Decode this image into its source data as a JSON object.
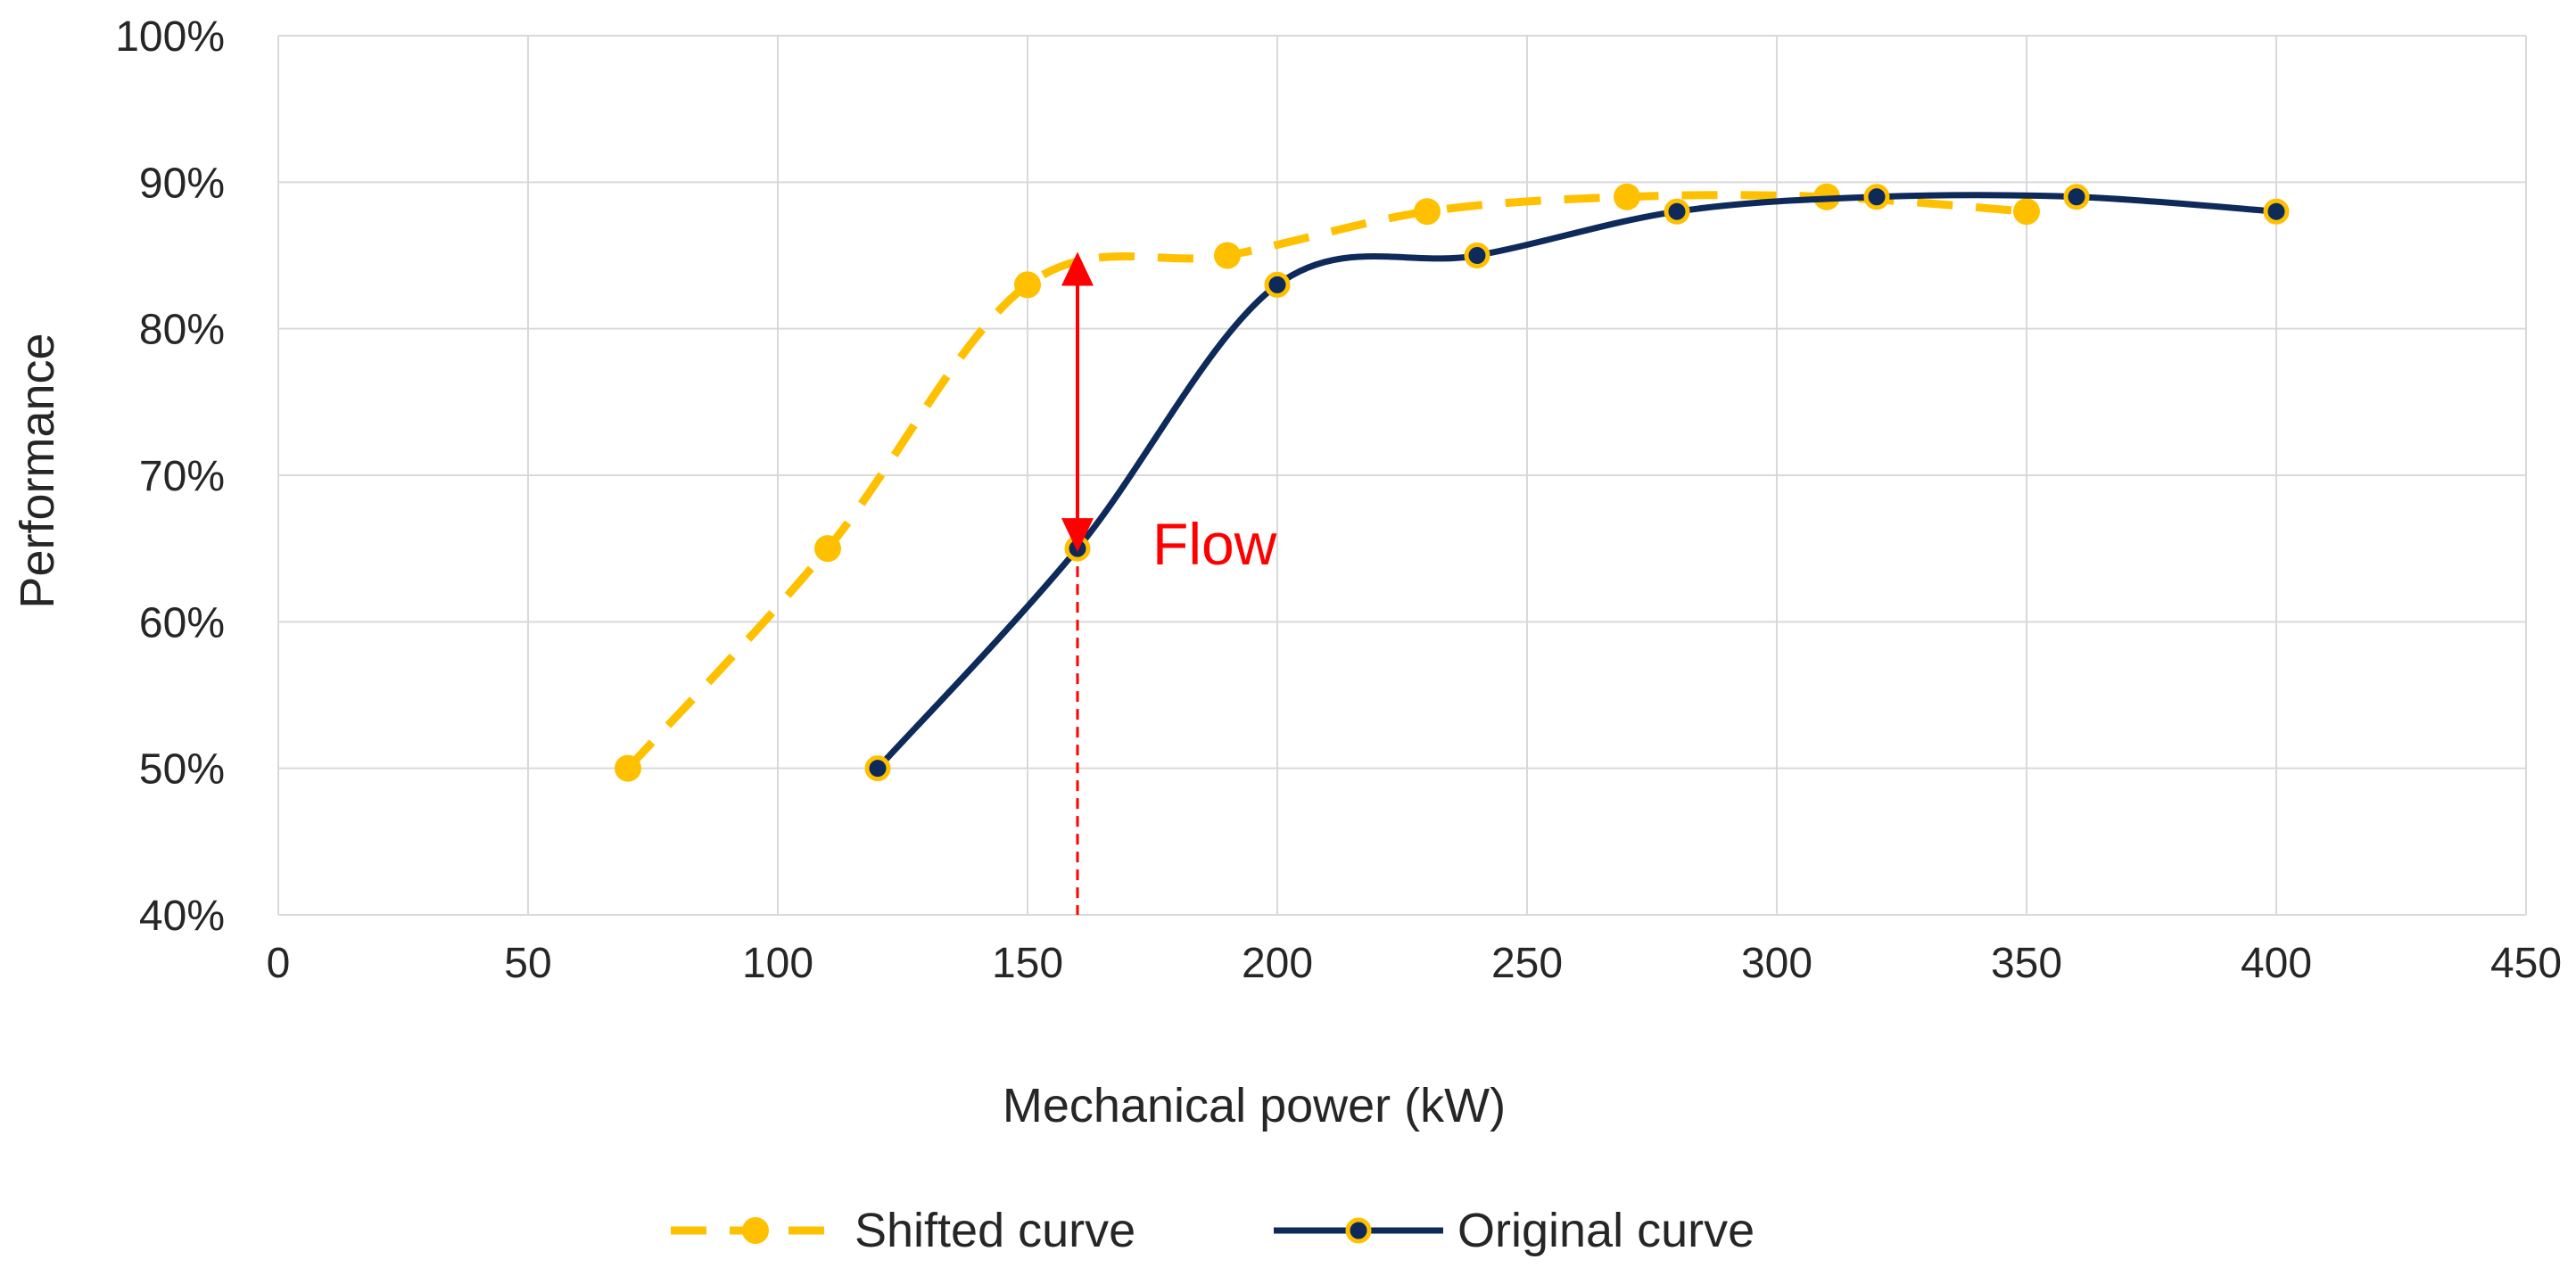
{
  "chart_data": {
    "type": "line",
    "title": "",
    "xlabel": "Mechanical power (kW)",
    "ylabel": "Performance",
    "xlim": [
      0,
      450
    ],
    "ylim": [
      40,
      100
    ],
    "x_ticks": [
      0,
      50,
      100,
      150,
      200,
      250,
      300,
      350,
      400,
      450
    ],
    "y_ticks": [
      40,
      50,
      60,
      70,
      80,
      90,
      100
    ],
    "x_tick_labels": [
      "0",
      "50",
      "100",
      "150",
      "200",
      "250",
      "300",
      "350",
      "400",
      "450"
    ],
    "y_tick_labels": [
      "40%",
      "50%",
      "60%",
      "70%",
      "80%",
      "90%",
      "100%"
    ],
    "grid": true,
    "legend_position": "bottom",
    "series": [
      {
        "name": "Shifted curve",
        "style": "dashed",
        "color": "#FFC000",
        "marker_fill": "#FFC000",
        "x": [
          70,
          110,
          150,
          190,
          230,
          270,
          310,
          350
        ],
        "y": [
          50,
          65,
          83,
          85,
          88,
          89,
          89,
          88
        ]
      },
      {
        "name": "Original curve",
        "style": "solid",
        "color": "#0E2A5A",
        "marker_fill": "#0E2A5A",
        "marker_edge": "#FFC000",
        "x": [
          120,
          160,
          200,
          240,
          280,
          320,
          360,
          400
        ],
        "y": [
          50,
          65,
          83,
          85,
          88,
          89,
          89,
          88
        ]
      }
    ],
    "annotations": [
      {
        "text": "Flow",
        "color": "#FF0000",
        "arrow_x": 160,
        "arrow_y_from": 65,
        "arrow_y_to": 85,
        "dashed_drop_to_x_axis": true
      }
    ]
  }
}
